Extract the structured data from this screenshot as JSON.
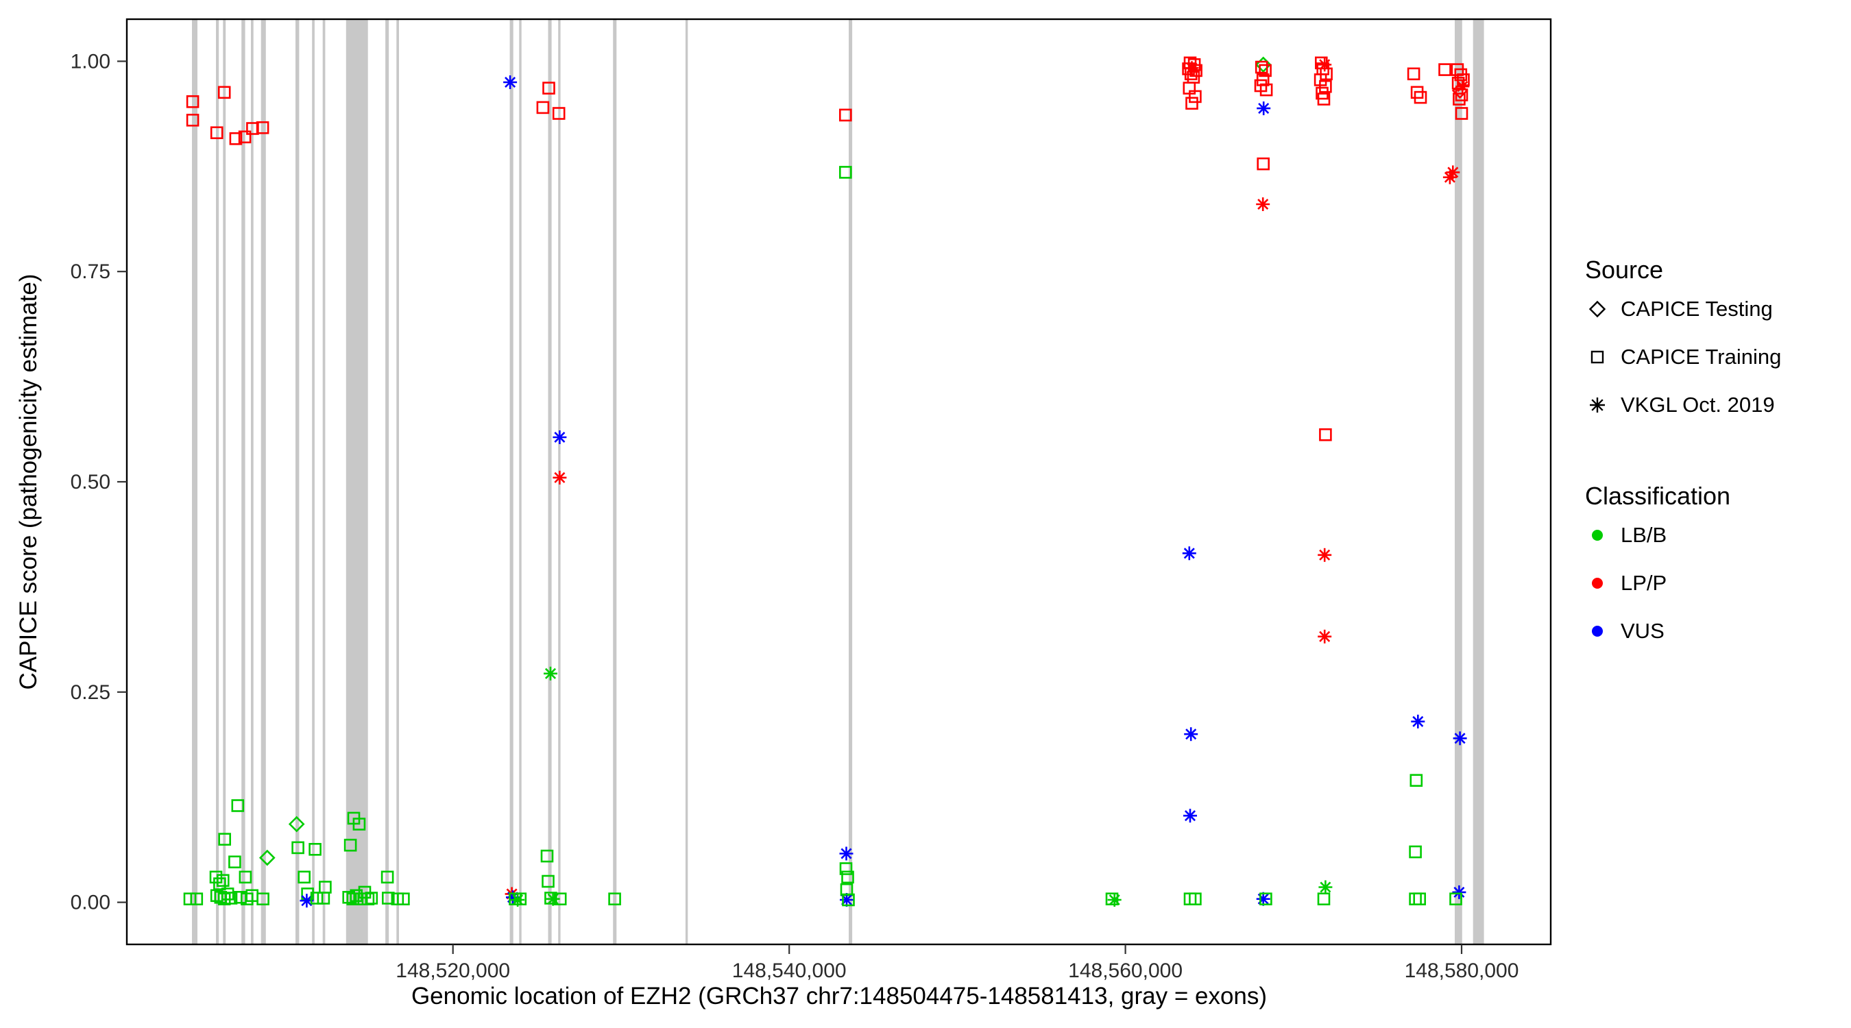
{
  "legend": {
    "source": {
      "title": "Source",
      "items": [
        {
          "label": "CAPICE Testing",
          "shape": "diamond"
        },
        {
          "label": "CAPICE Training",
          "shape": "square"
        },
        {
          "label": "VKGL Oct. 2019",
          "shape": "asterisk"
        }
      ]
    },
    "classification": {
      "title": "Classification",
      "items": [
        {
          "label": "LB/B",
          "color": "#00cc00"
        },
        {
          "label": "LP/P",
          "color": "#ff0000"
        },
        {
          "label": "VUS",
          "color": "#0000ff"
        }
      ]
    }
  },
  "chart_data": {
    "type": "scatter",
    "title": "",
    "xlabel": "Genomic location of EZH2 (GRCh37 chr7:148504475-148581413, gray = exons)",
    "ylabel": "CAPICE score (pathogenicity estimate)",
    "xlim": [
      148500600,
      148585300
    ],
    "ylim": [
      -0.05,
      1.05
    ],
    "grid": false,
    "legend_position": "right",
    "background": "#ffffff",
    "exon_color": "#c8c8c8",
    "panel_border_color": "#000000",
    "x_ticks": [
      {
        "value": 148520000,
        "label": "148,520,000"
      },
      {
        "value": 148540000,
        "label": "148,540,000"
      },
      {
        "value": 148560000,
        "label": "148,560,000"
      },
      {
        "value": 148580000,
        "label": "148,580,000"
      }
    ],
    "y_ticks": [
      {
        "value": 0.0,
        "label": "0.00"
      },
      {
        "value": 0.25,
        "label": "0.25"
      },
      {
        "value": 0.5,
        "label": "0.50"
      },
      {
        "value": 0.75,
        "label": "0.75"
      },
      {
        "value": 1.0,
        "label": "1.00"
      }
    ],
    "colors": {
      "LB/B": "#00cc00",
      "LP/P": "#ff0000",
      "VUS": "#0000ff"
    },
    "shapes": {
      "testing": "diamond",
      "training": "square",
      "vkgl": "asterisk"
    },
    "exon_regions": [
      [
        148504475,
        148504800
      ],
      [
        148505900,
        148506070
      ],
      [
        148506320,
        148506480
      ],
      [
        148507420,
        148507640
      ],
      [
        148507980,
        148508130
      ],
      [
        148508580,
        148508870
      ],
      [
        148510630,
        148510850
      ],
      [
        148511620,
        148511770
      ],
      [
        148512250,
        148512400
      ],
      [
        148513640,
        148514940
      ],
      [
        148515980,
        148516190
      ],
      [
        148516640,
        148516790
      ],
      [
        148523380,
        148523590
      ],
      [
        148523940,
        148524080
      ],
      [
        148525660,
        148525870
      ],
      [
        148526260,
        148526400
      ],
      [
        148529520,
        148529730
      ],
      [
        148533830,
        148533970
      ],
      [
        148543540,
        148543750
      ],
      [
        148579590,
        148580030
      ],
      [
        148580680,
        148581330
      ]
    ],
    "points_format": [
      "x_genomic_position",
      "capice_score",
      "classification",
      "source"
    ],
    "points": [
      [
        148504520,
        0.952,
        "LP/P",
        "training"
      ],
      [
        148504520,
        0.93,
        "LP/P",
        "training"
      ],
      [
        148505950,
        0.915,
        "LP/P",
        "training"
      ],
      [
        148506400,
        0.963,
        "LP/P",
        "training"
      ],
      [
        148507080,
        0.908,
        "LP/P",
        "training"
      ],
      [
        148507620,
        0.91,
        "LP/P",
        "training"
      ],
      [
        148508080,
        0.92,
        "LP/P",
        "training"
      ],
      [
        148508680,
        0.921,
        "LP/P",
        "training"
      ],
      [
        148523400,
        0.975,
        "VUS",
        "vkgl"
      ],
      [
        148525700,
        0.968,
        "LP/P",
        "training"
      ],
      [
        148525350,
        0.945,
        "LP/P",
        "training"
      ],
      [
        148526300,
        0.938,
        "LP/P",
        "training"
      ],
      [
        148526350,
        0.553,
        "VUS",
        "vkgl"
      ],
      [
        148526350,
        0.505,
        "LP/P",
        "vkgl"
      ],
      [
        148525800,
        0.272,
        "LB/B",
        "vkgl"
      ],
      [
        148543350,
        0.936,
        "LP/P",
        "training"
      ],
      [
        148543350,
        0.868,
        "LB/B",
        "training"
      ],
      [
        148563850,
        0.998,
        "LP/P",
        "training"
      ],
      [
        148564100,
        0.996,
        "LP/P",
        "training"
      ],
      [
        148563750,
        0.991,
        "LP/P",
        "training"
      ],
      [
        148564200,
        0.989,
        "LP/P",
        "training"
      ],
      [
        148563900,
        0.985,
        "LP/P",
        "training"
      ],
      [
        148564050,
        0.981,
        "LP/P",
        "training"
      ],
      [
        148563950,
        0.992,
        "LP/P",
        "vkgl"
      ],
      [
        148563800,
        0.968,
        "LP/P",
        "training"
      ],
      [
        148564150,
        0.958,
        "LP/P",
        "training"
      ],
      [
        148563950,
        0.95,
        "LP/P",
        "training"
      ],
      [
        148563800,
        0.415,
        "VUS",
        "vkgl"
      ],
      [
        148563900,
        0.2,
        "VUS",
        "vkgl"
      ],
      [
        148563850,
        0.103,
        "VUS",
        "vkgl"
      ],
      [
        148563850,
        0.004,
        "LB/B",
        "training"
      ],
      [
        148564150,
        0.004,
        "LB/B",
        "training"
      ],
      [
        148568200,
        0.996,
        "LB/B",
        "testing"
      ],
      [
        148568100,
        0.993,
        "LP/P",
        "training"
      ],
      [
        148568320,
        0.989,
        "LP/P",
        "training"
      ],
      [
        148568180,
        0.978,
        "LP/P",
        "training"
      ],
      [
        148568050,
        0.971,
        "LP/P",
        "training"
      ],
      [
        148568380,
        0.966,
        "LP/P",
        "training"
      ],
      [
        148568220,
        0.944,
        "VUS",
        "vkgl"
      ],
      [
        148568200,
        0.878,
        "LP/P",
        "training"
      ],
      [
        148568180,
        0.83,
        "LP/P",
        "vkgl"
      ],
      [
        148568200,
        0.004,
        "VUS",
        "vkgl"
      ],
      [
        148568350,
        0.004,
        "LB/B",
        "training"
      ],
      [
        148571650,
        0.998,
        "LP/P",
        "training"
      ],
      [
        148571850,
        0.996,
        "LP/P",
        "vkgl"
      ],
      [
        148571750,
        0.991,
        "LP/P",
        "training"
      ],
      [
        148571950,
        0.985,
        "LP/P",
        "training"
      ],
      [
        148571600,
        0.978,
        "LP/P",
        "training"
      ],
      [
        148571900,
        0.97,
        "LP/P",
        "training"
      ],
      [
        148571700,
        0.962,
        "LP/P",
        "training"
      ],
      [
        148571800,
        0.955,
        "LP/P",
        "training"
      ],
      [
        148571900,
        0.556,
        "LP/P",
        "training"
      ],
      [
        148571850,
        0.413,
        "LP/P",
        "vkgl"
      ],
      [
        148571850,
        0.316,
        "LP/P",
        "vkgl"
      ],
      [
        148571900,
        0.018,
        "LB/B",
        "vkgl"
      ],
      [
        148571800,
        0.004,
        "LB/B",
        "training"
      ],
      [
        148577150,
        0.985,
        "LP/P",
        "training"
      ],
      [
        148577350,
        0.963,
        "LP/P",
        "training"
      ],
      [
        148577550,
        0.957,
        "LP/P",
        "training"
      ],
      [
        148577400,
        0.215,
        "VUS",
        "vkgl"
      ],
      [
        148577300,
        0.145,
        "LB/B",
        "training"
      ],
      [
        148577250,
        0.06,
        "LB/B",
        "training"
      ],
      [
        148577250,
        0.004,
        "LB/B",
        "training"
      ],
      [
        148577500,
        0.004,
        "LB/B",
        "training"
      ],
      [
        148579000,
        0.99,
        "LP/P",
        "training"
      ],
      [
        148579750,
        0.99,
        "LP/P",
        "training"
      ],
      [
        148579950,
        0.984,
        "LP/P",
        "training"
      ],
      [
        148580100,
        0.978,
        "LP/P",
        "training"
      ],
      [
        148579800,
        0.974,
        "LP/P",
        "training"
      ],
      [
        148580050,
        0.97,
        "LP/P",
        "vkgl"
      ],
      [
        148579900,
        0.965,
        "LP/P",
        "testing"
      ],
      [
        148580000,
        0.96,
        "LP/P",
        "training"
      ],
      [
        148579850,
        0.955,
        "LP/P",
        "training"
      ],
      [
        148580000,
        0.938,
        "LP/P",
        "training"
      ],
      [
        148579300,
        0.862,
        "LP/P",
        "vkgl"
      ],
      [
        148579480,
        0.868,
        "LP/P",
        "vkgl"
      ],
      [
        148579900,
        0.195,
        "VUS",
        "vkgl"
      ],
      [
        148579850,
        0.012,
        "VUS",
        "vkgl"
      ],
      [
        148579650,
        0.004,
        "LB/B",
        "training"
      ],
      [
        148559200,
        0.004,
        "LB/B",
        "training"
      ],
      [
        148559350,
        0.003,
        "LB/B",
        "vkgl"
      ],
      [
        148504350,
        0.004,
        "LB/B",
        "training"
      ],
      [
        148504750,
        0.004,
        "LB/B",
        "training"
      ],
      [
        148505900,
        0.03,
        "LB/B",
        "training"
      ],
      [
        148506120,
        0.022,
        "LB/B",
        "training"
      ],
      [
        148506320,
        0.026,
        "LB/B",
        "training"
      ],
      [
        148506420,
        0.075,
        "LB/B",
        "training"
      ],
      [
        148505950,
        0.008,
        "LB/B",
        "training"
      ],
      [
        148506180,
        0.006,
        "LB/B",
        "training"
      ],
      [
        148506400,
        0.004,
        "LB/B",
        "training"
      ],
      [
        148506600,
        0.01,
        "LB/B",
        "training"
      ],
      [
        148506800,
        0.005,
        "LB/B",
        "training"
      ],
      [
        148507200,
        0.115,
        "LB/B",
        "training"
      ],
      [
        148507020,
        0.048,
        "LB/B",
        "training"
      ],
      [
        148507650,
        0.03,
        "LB/B",
        "training"
      ],
      [
        148507350,
        0.006,
        "LB/B",
        "training"
      ],
      [
        148507750,
        0.004,
        "LB/B",
        "training"
      ],
      [
        148508050,
        0.008,
        "LB/B",
        "training"
      ],
      [
        148508700,
        0.004,
        "LB/B",
        "training"
      ],
      [
        148508950,
        0.053,
        "LB/B",
        "testing"
      ],
      [
        148510700,
        0.093,
        "LB/B",
        "testing"
      ],
      [
        148510780,
        0.065,
        "LB/B",
        "training"
      ],
      [
        148511150,
        0.03,
        "LB/B",
        "training"
      ],
      [
        148511350,
        0.01,
        "LB/B",
        "training"
      ],
      [
        148511300,
        0.002,
        "VUS",
        "vkgl"
      ],
      [
        148511800,
        0.063,
        "LB/B",
        "training"
      ],
      [
        148511900,
        0.005,
        "LB/B",
        "training"
      ],
      [
        148512400,
        0.018,
        "LB/B",
        "training"
      ],
      [
        148512300,
        0.005,
        "LB/B",
        "training"
      ],
      [
        148514100,
        0.1,
        "LB/B",
        "training"
      ],
      [
        148514420,
        0.093,
        "LB/B",
        "training"
      ],
      [
        148513900,
        0.068,
        "LB/B",
        "training"
      ],
      [
        148513800,
        0.006,
        "LB/B",
        "training"
      ],
      [
        148514050,
        0.004,
        "LB/B",
        "training"
      ],
      [
        148514250,
        0.008,
        "LB/B",
        "training"
      ],
      [
        148514550,
        0.004,
        "LB/B",
        "training"
      ],
      [
        148514750,
        0.012,
        "LB/B",
        "training"
      ],
      [
        148514950,
        0.004,
        "LB/B",
        "training"
      ],
      [
        148515150,
        0.005,
        "LB/B",
        "training"
      ],
      [
        148516100,
        0.03,
        "LB/B",
        "training"
      ],
      [
        148516150,
        0.005,
        "LB/B",
        "training"
      ],
      [
        148516700,
        0.004,
        "LB/B",
        "training"
      ],
      [
        148517050,
        0.004,
        "LB/B",
        "training"
      ],
      [
        148523500,
        0.01,
        "LP/P",
        "vkgl"
      ],
      [
        148523560,
        0.006,
        "VUS",
        "vkgl"
      ],
      [
        148523700,
        0.004,
        "LB/B",
        "training"
      ],
      [
        148524000,
        0.004,
        "LB/B",
        "training"
      ],
      [
        148523850,
        0.003,
        "LB/B",
        "vkgl"
      ],
      [
        148525600,
        0.055,
        "LB/B",
        "training"
      ],
      [
        148525660,
        0.025,
        "LB/B",
        "training"
      ],
      [
        148525820,
        0.005,
        "LB/B",
        "training"
      ],
      [
        148525950,
        0.004,
        "LB/B",
        "vkgl"
      ],
      [
        148526380,
        0.004,
        "LB/B",
        "training"
      ],
      [
        148529620,
        0.004,
        "LB/B",
        "training"
      ],
      [
        148543400,
        0.058,
        "VUS",
        "vkgl"
      ],
      [
        148543380,
        0.04,
        "LB/B",
        "training"
      ],
      [
        148543480,
        0.03,
        "LB/B",
        "training"
      ],
      [
        148543420,
        0.015,
        "LB/B",
        "training"
      ],
      [
        148543420,
        0.003,
        "VUS",
        "vkgl"
      ],
      [
        148543520,
        0.003,
        "LB/B",
        "training"
      ]
    ]
  }
}
